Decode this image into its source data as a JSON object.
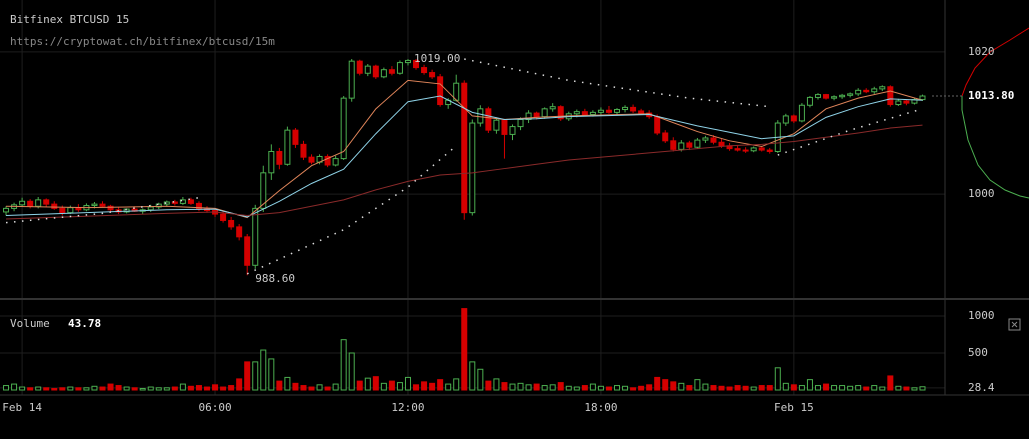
{
  "chart_data": {
    "type": "candlestick",
    "title": "Bitfinex BTCUSD 15",
    "subtitle": "https://cryptowat.ch/bitfinex/btcusd/15m",
    "xlim": [
      -0.75,
      116.8
    ],
    "xticks": [
      {
        "value": 2,
        "label": "Feb 14"
      },
      {
        "value": 26,
        "label": "06:00"
      },
      {
        "value": 50,
        "label": "12:00"
      },
      {
        "value": 74,
        "label": "18:00"
      },
      {
        "value": 98,
        "label": "Feb 15"
      }
    ],
    "ylim": [
      985.4,
      1027.3
    ],
    "yticks": [
      1000,
      1020
    ],
    "up_color": "#4caf50",
    "down_color": "#d50000",
    "candles": [
      [
        997.5,
        998.3,
        997,
        998
      ],
      [
        998,
        998.8,
        997.6,
        998.5
      ],
      [
        998.5,
        999.5,
        998.2,
        999
      ],
      [
        999,
        999.3,
        998,
        998.3
      ],
      [
        998.3,
        999.6,
        998,
        999.2
      ],
      [
        999.2,
        999.4,
        998.2,
        998.6
      ],
      [
        998.6,
        999,
        997.8,
        998
      ],
      [
        998,
        998.4,
        997,
        997.4
      ],
      [
        997.4,
        998.4,
        997.2,
        998.1
      ],
      [
        998.1,
        998.6,
        997.5,
        997.8
      ],
      [
        997.8,
        998.7,
        997.6,
        998.4
      ],
      [
        998.4,
        998.9,
        998,
        998.6
      ],
      [
        998.6,
        999,
        998.2,
        998.3
      ],
      [
        998.3,
        998.5,
        997.5,
        997.8
      ],
      [
        997.8,
        998.2,
        997.2,
        997.5
      ],
      [
        997.5,
        998,
        997.3,
        997.9
      ],
      [
        997.9,
        998.3,
        997.5,
        997.6
      ],
      [
        997.6,
        998,
        997.2,
        997.8
      ],
      [
        997.8,
        998.5,
        997.5,
        998.2
      ],
      [
        998.2,
        998.8,
        997.9,
        998.6
      ],
      [
        998.6,
        999.1,
        998.3,
        998.9
      ],
      [
        998.9,
        999.2,
        998.4,
        998.7
      ],
      [
        998.7,
        999.6,
        998.5,
        999.2
      ],
      [
        999.2,
        999.5,
        998.5,
        998.7
      ],
      [
        998.7,
        999,
        997.6,
        997.9
      ],
      [
        997.9,
        998.3,
        997.4,
        997.7
      ],
      [
        997.7,
        998,
        996.8,
        997.2
      ],
      [
        997.2,
        997.6,
        996,
        996.3
      ],
      [
        996.3,
        996.8,
        995,
        995.4
      ],
      [
        995.4,
        995.8,
        993.5,
        994
      ],
      [
        994,
        994.4,
        988.6,
        990
      ],
      [
        990,
        998.5,
        989.5,
        998
      ],
      [
        998,
        1004,
        997.5,
        1003
      ],
      [
        1003,
        1007,
        1002,
        1006
      ],
      [
        1006,
        1006.5,
        1003.5,
        1004.2
      ],
      [
        1004.2,
        1009.5,
        1004,
        1009
      ],
      [
        1009,
        1009.3,
        1006.5,
        1007
      ],
      [
        1007,
        1007.5,
        1004.8,
        1005.2
      ],
      [
        1005.2,
        1005.6,
        1004.2,
        1004.5
      ],
      [
        1004.5,
        1005.6,
        1004.2,
        1005.3
      ],
      [
        1005.3,
        1005.6,
        1003.8,
        1004.1
      ],
      [
        1004.1,
        1005.4,
        1003.9,
        1005
      ],
      [
        1005,
        1013.8,
        1004.8,
        1013.5
      ],
      [
        1013.5,
        1019,
        1013,
        1018.7
      ],
      [
        1018.7,
        1018.9,
        1016.7,
        1017
      ],
      [
        1017,
        1018.3,
        1016.6,
        1018
      ],
      [
        1018,
        1018.2,
        1016.2,
        1016.5
      ],
      [
        1016.5,
        1017.8,
        1016.3,
        1017.5
      ],
      [
        1017.5,
        1018,
        1016.7,
        1017
      ],
      [
        1017,
        1018.8,
        1016.8,
        1018.5
      ],
      [
        1018.5,
        1019,
        1018.1,
        1018.8
      ],
      [
        1018.8,
        1019,
        1017.5,
        1017.8
      ],
      [
        1017.8,
        1018.2,
        1016.8,
        1017.1
      ],
      [
        1017.1,
        1017.5,
        1016.2,
        1016.5
      ],
      [
        1016.5,
        1016.9,
        1012.3,
        1012.6
      ],
      [
        1012.6,
        1013.5,
        1012,
        1013.2
      ],
      [
        1013.2,
        1016.8,
        1013,
        1015.6
      ],
      [
        1015.6,
        1016,
        996.4,
        997.4
      ],
      [
        997.4,
        1010.5,
        997,
        1010
      ],
      [
        1010,
        1012.5,
        1009.5,
        1012
      ],
      [
        1012,
        1012.3,
        1008.6,
        1009
      ],
      [
        1009,
        1010.8,
        1008.5,
        1010.4
      ],
      [
        1010.4,
        1010.6,
        1005,
        1008.4
      ],
      [
        1008.4,
        1009.8,
        1007.6,
        1009.5
      ],
      [
        1009.5,
        1010.8,
        1009,
        1010.5
      ],
      [
        1010.5,
        1011.8,
        1010,
        1011.4
      ],
      [
        1011.4,
        1011.6,
        1010.5,
        1010.9
      ],
      [
        1010.9,
        1012.2,
        1010.6,
        1012
      ],
      [
        1012,
        1012.8,
        1011.6,
        1012.3
      ],
      [
        1012.3,
        1012.5,
        1010.3,
        1010.6
      ],
      [
        1010.6,
        1011.6,
        1010.3,
        1011.3
      ],
      [
        1011.3,
        1011.9,
        1010.8,
        1011.6
      ],
      [
        1011.6,
        1012,
        1011,
        1011.2
      ],
      [
        1011.2,
        1011.8,
        1010.9,
        1011.5
      ],
      [
        1011.5,
        1012.2,
        1011.2,
        1011.8
      ],
      [
        1011.8,
        1012.4,
        1011.3,
        1011.5
      ],
      [
        1011.5,
        1012.1,
        1011.1,
        1011.9
      ],
      [
        1011.9,
        1012.5,
        1011.5,
        1012.2
      ],
      [
        1012.2,
        1012.6,
        1011.4,
        1011.7
      ],
      [
        1011.7,
        1012,
        1011.2,
        1011.4
      ],
      [
        1011.4,
        1011.8,
        1010.6,
        1010.9
      ],
      [
        1010.9,
        1011.2,
        1008.3,
        1008.6
      ],
      [
        1008.6,
        1009,
        1007.2,
        1007.5
      ],
      [
        1007.5,
        1008,
        1006,
        1006.3
      ],
      [
        1006.3,
        1007.6,
        1006,
        1007.2
      ],
      [
        1007.2,
        1007.5,
        1006.2,
        1006.6
      ],
      [
        1006.6,
        1007.9,
        1006.4,
        1007.6
      ],
      [
        1007.6,
        1008.2,
        1007.2,
        1007.9
      ],
      [
        1007.9,
        1008.3,
        1007,
        1007.3
      ],
      [
        1007.3,
        1007.8,
        1006.5,
        1006.8
      ],
      [
        1006.8,
        1007.2,
        1006.1,
        1006.4
      ],
      [
        1006.4,
        1006.9,
        1006,
        1006.2
      ],
      [
        1006.2,
        1006.6,
        1005.8,
        1006.1
      ],
      [
        1006.1,
        1006.7,
        1005.9,
        1006.5
      ],
      [
        1006.5,
        1006.8,
        1006,
        1006.2
      ],
      [
        1006.2,
        1006.5,
        1005.7,
        1006
      ],
      [
        1006,
        1010.4,
        1005.8,
        1010
      ],
      [
        1010,
        1011.3,
        1009.6,
        1011
      ],
      [
        1011,
        1011.2,
        1010,
        1010.3
      ],
      [
        1010.3,
        1012.8,
        1010.1,
        1012.5
      ],
      [
        1012.5,
        1013.8,
        1012.2,
        1013.6
      ],
      [
        1013.6,
        1014.2,
        1013.3,
        1014
      ],
      [
        1014,
        1014.1,
        1013.3,
        1013.5
      ],
      [
        1013.5,
        1013.9,
        1013.2,
        1013.7
      ],
      [
        1013.7,
        1014.1,
        1013.4,
        1013.9
      ],
      [
        1013.9,
        1014.3,
        1013.6,
        1014.1
      ],
      [
        1014.1,
        1014.9,
        1013.8,
        1014.6
      ],
      [
        1014.6,
        1014.9,
        1014.2,
        1014.4
      ],
      [
        1014.4,
        1015.1,
        1014.1,
        1014.8
      ],
      [
        1014.8,
        1015.3,
        1014.5,
        1015.1
      ],
      [
        1015.1,
        1015.3,
        1012.3,
        1012.6
      ],
      [
        1012.6,
        1013.4,
        1012.4,
        1013.1
      ],
      [
        1013.1,
        1013.3,
        1012.5,
        1012.8
      ],
      [
        1012.8,
        1013.5,
        1012.6,
        1013.3
      ],
      [
        1013.3,
        1014,
        1013.1,
        1013.8
      ]
    ],
    "overlays": [
      {
        "color": "#e0855a",
        "x": [
          0,
          10,
          20,
          26,
          30,
          34,
          38,
          42,
          46,
          50,
          54,
          58,
          62,
          66,
          70,
          80,
          86,
          90,
          94,
          98,
          102,
          106,
          110,
          114
        ],
        "values": [
          998.3,
          998.1,
          998.3,
          998,
          996.7,
          1000.5,
          1004,
          1006,
          1012,
          1016,
          1015.5,
          1011,
          1010.5,
          1010.8,
          1011,
          1011.3,
          1008.8,
          1007.5,
          1006.7,
          1008.5,
          1012,
          1013.5,
          1014.5,
          1013.2
        ]
      },
      {
        "color": "#8fd3e8",
        "x": [
          0,
          10,
          20,
          26,
          30,
          34,
          38,
          42,
          46,
          50,
          54,
          58,
          62,
          66,
          70,
          80,
          86,
          90,
          94,
          98,
          102,
          106,
          110,
          114
        ],
        "values": [
          997,
          997.4,
          997.8,
          997.9,
          996.8,
          999,
          1001.5,
          1003.5,
          1008.5,
          1013,
          1013.8,
          1011.5,
          1010.5,
          1010.6,
          1010.9,
          1011.2,
          1009.6,
          1008.7,
          1007.8,
          1008.2,
          1010.8,
          1012.3,
          1013.4,
          1013.2
        ]
      },
      {
        "color": "#8a2a2a",
        "x": [
          0,
          10,
          20,
          26,
          30,
          34,
          38,
          42,
          46,
          50,
          54,
          58,
          62,
          66,
          70,
          80,
          86,
          90,
          94,
          98,
          102,
          106,
          110,
          114
        ],
        "values": [
          996.5,
          996.9,
          997.3,
          997.5,
          997,
          997.4,
          998.3,
          999.2,
          1000.6,
          1001.8,
          1002.7,
          1003,
          1003.6,
          1004.2,
          1004.8,
          1005.8,
          1006.4,
          1006.8,
          1007,
          1007.4,
          1008,
          1008.6,
          1009.3,
          1009.7
        ]
      },
      {
        "color": "#dddddd",
        "dotted": true,
        "x": [
          0,
          12,
          24,
          27,
          30,
          42,
          50,
          56,
          56.5,
          57,
          70,
          85,
          95,
          95.5,
          96,
          105,
          114
        ],
        "values": [
          996,
          997.3,
          999.5,
          null,
          988.8,
          995,
          1001,
          1006.8,
          null,
          1019,
          1016,
          1013.5,
          1012.3,
          null,
          1005.5,
          1009,
          1012
        ]
      }
    ],
    "high": {
      "index": 50,
      "value": 1019,
      "label": "1019.00"
    },
    "low": {
      "index": 30,
      "value": 988.6,
      "label": "988.60"
    },
    "last_price": {
      "value": 1013.8,
      "label": "1013.80"
    },
    "volume_title": "Volume",
    "volume_last": 43.78,
    "volume_ylim": [
      0,
      1108
    ],
    "volume_yticks": [
      28.4,
      500,
      1000
    ],
    "volumes": [
      60,
      80,
      40,
      30,
      40,
      30,
      20,
      30,
      40,
      30,
      30,
      50,
      40,
      80,
      60,
      40,
      30,
      20,
      40,
      30,
      30,
      40,
      80,
      50,
      60,
      40,
      70,
      40,
      60,
      150,
      380,
      380,
      540,
      420,
      120,
      170,
      90,
      60,
      40,
      70,
      40,
      80,
      680,
      500,
      120,
      160,
      180,
      90,
      120,
      100,
      170,
      70,
      110,
      90,
      140,
      80,
      150,
      1100,
      380,
      280,
      120,
      150,
      100,
      80,
      90,
      70,
      80,
      60,
      70,
      100,
      50,
      40,
      60,
      80,
      50,
      40,
      60,
      50,
      30,
      50,
      70,
      170,
      140,
      110,
      90,
      60,
      140,
      80,
      60,
      50,
      40,
      60,
      50,
      40,
      60,
      60,
      300,
      90,
      70,
      60,
      140,
      60,
      80,
      60,
      60,
      50,
      60,
      40,
      60,
      40,
      190,
      50,
      40,
      30,
      44
    ]
  }
}
